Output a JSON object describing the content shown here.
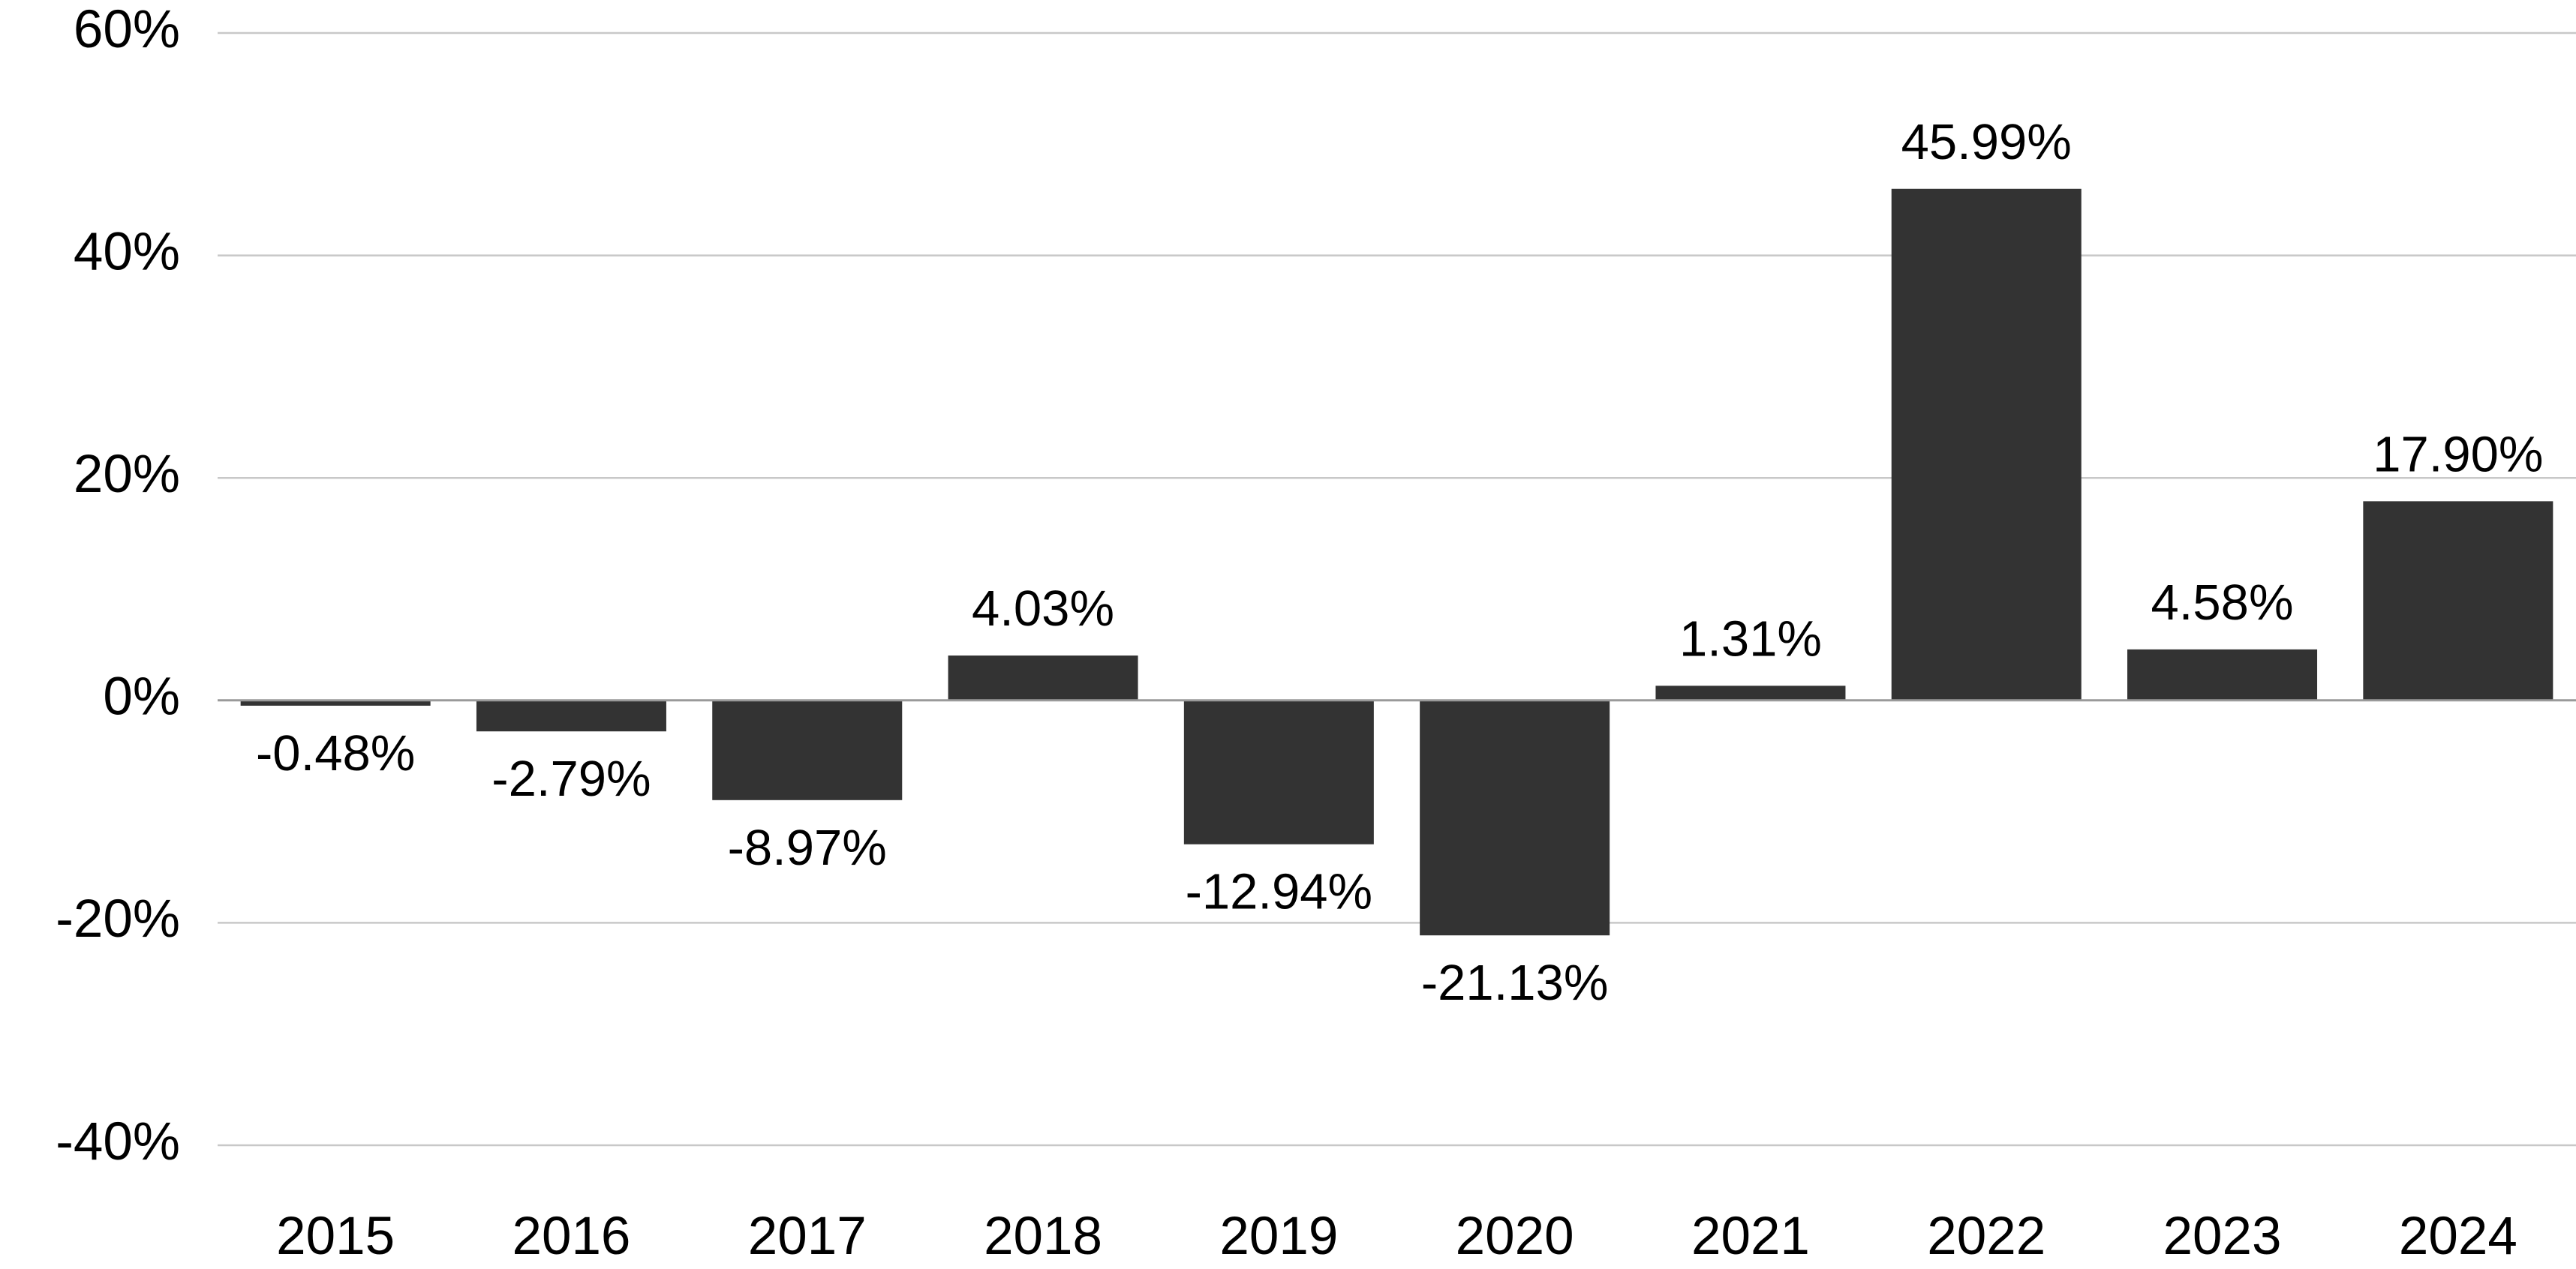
{
  "chart_data": {
    "type": "bar",
    "title": "",
    "xlabel": "",
    "ylabel": "",
    "categories": [
      "2015",
      "2016",
      "2017",
      "2018",
      "2019",
      "2020",
      "2021",
      "2022",
      "2023",
      "2024"
    ],
    "values": [
      -0.48,
      -2.79,
      -8.97,
      4.03,
      -12.94,
      -21.13,
      1.31,
      45.99,
      4.58,
      17.9
    ],
    "data_labels": [
      "-0.48%",
      "-2.79%",
      "-8.97%",
      "4.03%",
      "-12.94%",
      "-21.13%",
      "1.31%",
      "45.99%",
      "4.58%",
      "17.90%"
    ],
    "ylim": [
      -40,
      60
    ],
    "yticks": [
      60,
      40,
      20,
      0,
      -20,
      -40
    ],
    "ytick_labels": [
      "60%",
      "40%",
      "20%",
      "0%",
      "-20%",
      "-40%"
    ],
    "grid": true,
    "legend": "none",
    "bar_color": "#333333"
  }
}
